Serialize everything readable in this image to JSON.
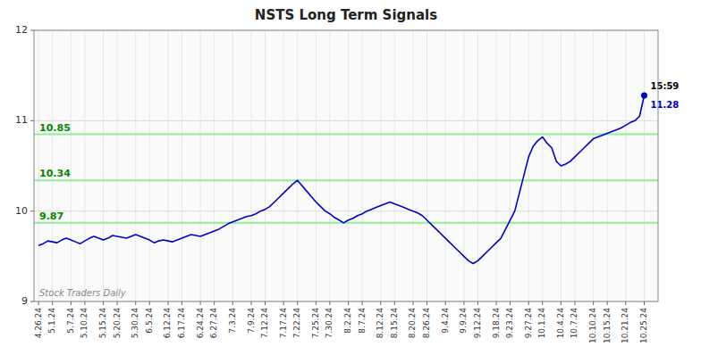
{
  "chart_data": {
    "type": "line",
    "title": "NSTS Long Term Signals",
    "categories": [
      "4.26.24",
      null,
      null,
      "5.1.24",
      null,
      null,
      null,
      "5.7.24",
      null,
      null,
      "5.10.24",
      null,
      null,
      null,
      "5.15.24",
      null,
      null,
      "5.20.24",
      null,
      null,
      null,
      "5.30.24",
      null,
      null,
      "6.5.24",
      null,
      null,
      null,
      "6.12.24",
      null,
      null,
      "6.17.24",
      null,
      null,
      null,
      "6.24.24",
      null,
      null,
      "6.27.24",
      null,
      null,
      null,
      "7.3.24",
      null,
      null,
      null,
      "7.9.24",
      null,
      null,
      "7.12.24",
      null,
      null,
      null,
      "7.17.24",
      null,
      null,
      "7.22.24",
      null,
      null,
      null,
      "7.25.24",
      null,
      null,
      "7.30.24",
      null,
      null,
      null,
      "8.2.24",
      null,
      null,
      "8.7.24",
      null,
      null,
      null,
      "8.12.24",
      null,
      null,
      "8.15.24",
      null,
      null,
      null,
      "8.20.24",
      null,
      null,
      "8.26.24",
      null,
      null,
      null,
      "9.4.24",
      null,
      null,
      null,
      "9.9.24",
      null,
      null,
      "9.12.24",
      null,
      null,
      null,
      "9.18.24",
      null,
      null,
      "9.23.24",
      null,
      null,
      null,
      "9.27.24",
      null,
      null,
      "10.1.24",
      null,
      null,
      null,
      "10.4.24",
      null,
      null,
      "10.7.24",
      null,
      null,
      null,
      "10.10.24",
      null,
      null,
      "10.15.24",
      null,
      null,
      null,
      "10.21.24",
      null,
      null,
      null,
      "10.25.24"
    ],
    "values": [
      9.62,
      9.64,
      9.67,
      9.66,
      9.65,
      9.68,
      9.7,
      9.68,
      9.66,
      9.64,
      9.67,
      9.7,
      9.72,
      9.7,
      9.68,
      9.7,
      9.73,
      9.72,
      9.71,
      9.7,
      9.72,
      9.74,
      9.72,
      9.7,
      9.68,
      9.65,
      9.67,
      9.68,
      9.67,
      9.66,
      9.68,
      9.7,
      9.72,
      9.74,
      9.73,
      9.72,
      9.74,
      9.76,
      9.78,
      9.8,
      9.83,
      9.86,
      9.88,
      9.9,
      9.92,
      9.94,
      9.95,
      9.97,
      10.0,
      10.02,
      10.05,
      10.1,
      10.15,
      10.2,
      10.25,
      10.3,
      10.34,
      10.28,
      10.22,
      10.16,
      10.1,
      10.05,
      10.0,
      9.97,
      9.93,
      9.9,
      9.87,
      9.9,
      9.92,
      9.95,
      9.97,
      10.0,
      10.02,
      10.04,
      10.06,
      10.08,
      10.1,
      10.08,
      10.06,
      10.04,
      10.02,
      10.0,
      9.98,
      9.95,
      9.9,
      9.85,
      9.8,
      9.75,
      9.7,
      9.65,
      9.6,
      9.55,
      9.5,
      9.45,
      9.42,
      9.45,
      9.5,
      9.55,
      9.6,
      9.65,
      9.7,
      9.8,
      9.9,
      10.0,
      10.2,
      10.4,
      10.6,
      10.72,
      10.78,
      10.82,
      10.75,
      10.7,
      10.55,
      10.5,
      10.52,
      10.55,
      10.6,
      10.65,
      10.7,
      10.75,
      10.8,
      10.82,
      10.84,
      10.86,
      10.88,
      10.9,
      10.92,
      10.95,
      10.98,
      11.0,
      11.05,
      11.28
    ],
    "color": "#0000cc",
    "marker": "last",
    "ylim": [
      9,
      12
    ],
    "yticks": [
      9,
      10,
      11,
      12
    ],
    "grid": true,
    "reference_lines": [
      {
        "value": 9.87,
        "label": "9.87"
      },
      {
        "value": 10.34,
        "label": "10.34"
      },
      {
        "value": 10.85,
        "label": "10.85"
      }
    ],
    "reference_line_color": "#90ee90",
    "reference_label_color": "#008800",
    "annotations": [
      {
        "text": "15:59",
        "color": "#000000"
      },
      {
        "text": "11.28",
        "color": "#0000cc"
      }
    ],
    "watermark": "Stock Traders Daily"
  }
}
